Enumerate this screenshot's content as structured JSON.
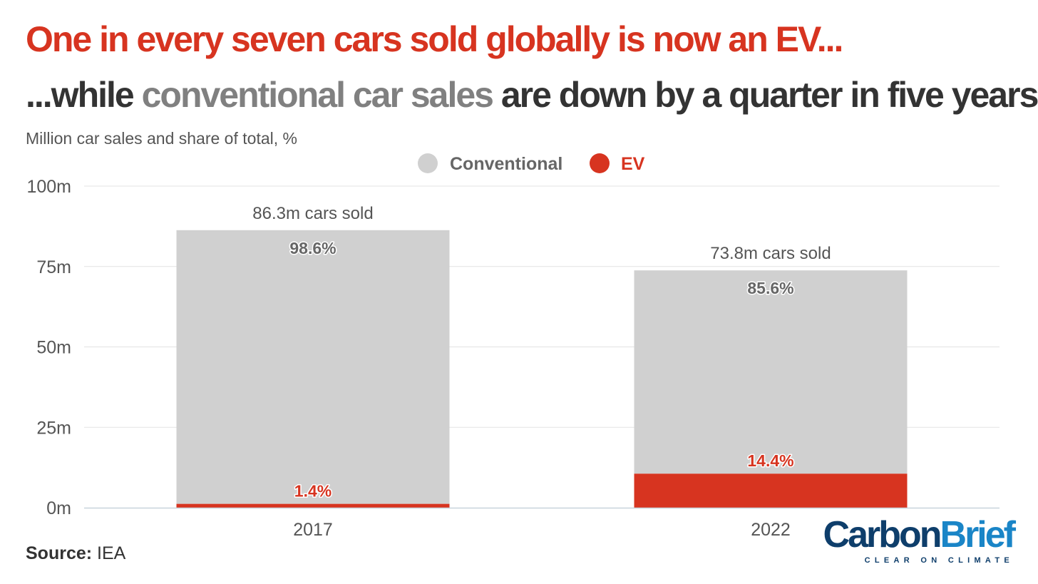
{
  "chart_data": {
    "type": "bar",
    "stacked": true,
    "title": "One in every seven cars sold globally is now an EV...",
    "subtitle": {
      "before": "...while ",
      "highlight": "conventional car sales",
      "after": " are down by a quarter in five years"
    },
    "units_label": "Million car sales and share of total, %",
    "categories": [
      "2017",
      "2022"
    ],
    "series": [
      {
        "name": "Conventional",
        "color": "#d0d0d0",
        "label_color": "#666666",
        "values": [
          85.1,
          63.2
        ],
        "share_labels": [
          "98.6%",
          "85.6%"
        ]
      },
      {
        "name": "EV",
        "color": "#d73420",
        "label_color": "#d73420",
        "values": [
          1.2,
          10.6
        ],
        "share_labels": [
          "1.4%",
          "14.4%"
        ]
      }
    ],
    "totals": [
      86.3,
      73.8
    ],
    "total_labels": [
      "86.3m cars sold",
      "73.8m cars sold"
    ],
    "ylim": [
      0,
      100
    ],
    "yticks": [
      0,
      25,
      50,
      75,
      100
    ],
    "ytick_labels": [
      "0m",
      "25m",
      "50m",
      "75m",
      "100m"
    ],
    "grid": true,
    "legend_position": "top-center"
  },
  "source": {
    "label": "Source:",
    "text": "IEA"
  },
  "logo": {
    "word_part1": "Carbon",
    "word_part2": "Brief",
    "tagline": "CLEAR ON CLIMATE"
  }
}
